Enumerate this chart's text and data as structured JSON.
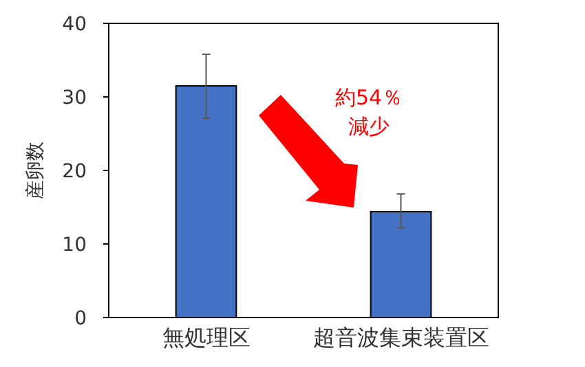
{
  "chart_data": {
    "type": "bar",
    "ylabel": "産卵数",
    "categories": [
      "無処理区",
      "超音波集束装置区"
    ],
    "values": [
      31.5,
      14.4
    ],
    "color": "#4472c4",
    "errors": [
      [
        27.1,
        35.8
      ],
      [
        12.2,
        16.8
      ]
    ],
    "ylim": [
      0,
      40
    ],
    "yticks": [
      0,
      10,
      20,
      30,
      40
    ],
    "annotations": [
      "約54％",
      "減少"
    ]
  }
}
